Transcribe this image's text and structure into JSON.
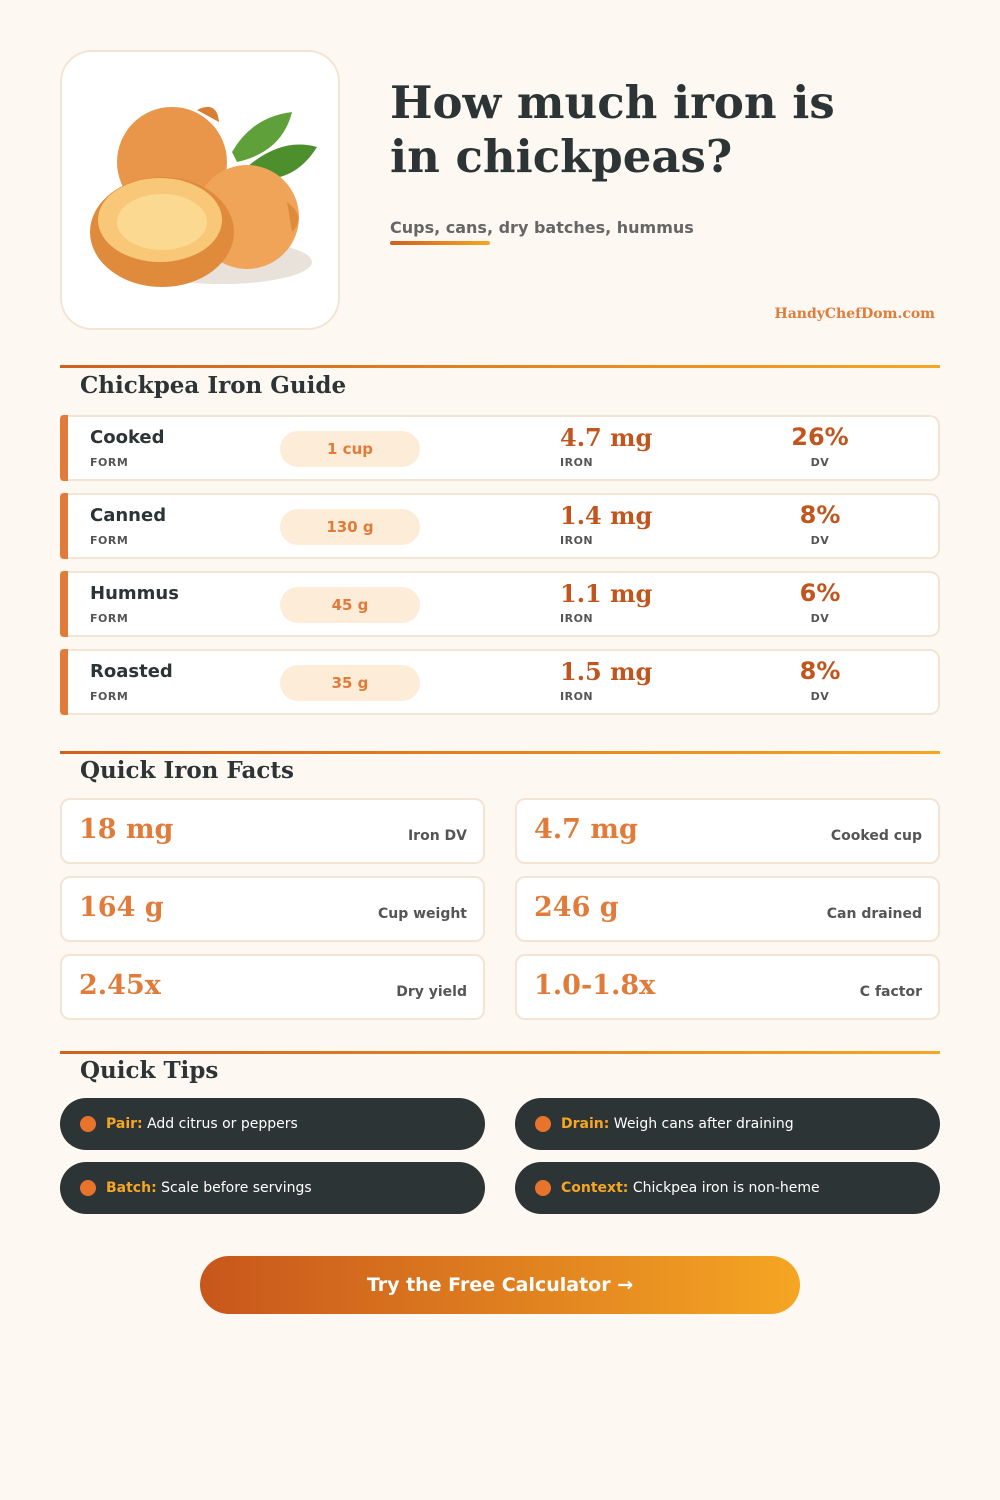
{
  "header": {
    "title": "How much iron is in chickpeas?",
    "subtitle": "Cups, cans, dry batches, hummus",
    "site": "HandyChefDom.com"
  },
  "guide": {
    "heading": "Chickpea Iron Guide",
    "column_labels": {
      "form": "FORM",
      "iron": "IRON",
      "dv": "DV"
    },
    "rows": [
      {
        "form": "Cooked",
        "serving": "1 cup",
        "iron": "4.7 mg",
        "dv": "26%"
      },
      {
        "form": "Canned",
        "serving": "130 g",
        "iron": "1.4 mg",
        "dv": "8%"
      },
      {
        "form": "Hummus",
        "serving": "45 g",
        "iron": "1.1 mg",
        "dv": "6%"
      },
      {
        "form": "Roasted",
        "serving": "35 g",
        "iron": "1.5 mg",
        "dv": "8%"
      }
    ]
  },
  "facts": {
    "heading": "Quick Iron Facts",
    "items": [
      {
        "value": "18 mg",
        "label": "Iron DV"
      },
      {
        "value": "4.7 mg",
        "label": "Cooked cup"
      },
      {
        "value": "164 g",
        "label": "Cup weight"
      },
      {
        "value": "246 g",
        "label": "Can drained"
      },
      {
        "value": "2.45x",
        "label": "Dry yield"
      },
      {
        "value": "1.0-1.8x",
        "label": "C factor"
      }
    ]
  },
  "tips": {
    "heading": "Quick Tips",
    "items": [
      {
        "label": "Pair:",
        "text": "Add citrus or peppers"
      },
      {
        "label": "Drain:",
        "text": "Weigh cans after draining"
      },
      {
        "label": "Batch:",
        "text": "Scale before servings"
      },
      {
        "label": "Context:",
        "text": "Chickpea iron is non-heme"
      }
    ]
  },
  "cta": {
    "text": "Try the Free Calculator →"
  }
}
